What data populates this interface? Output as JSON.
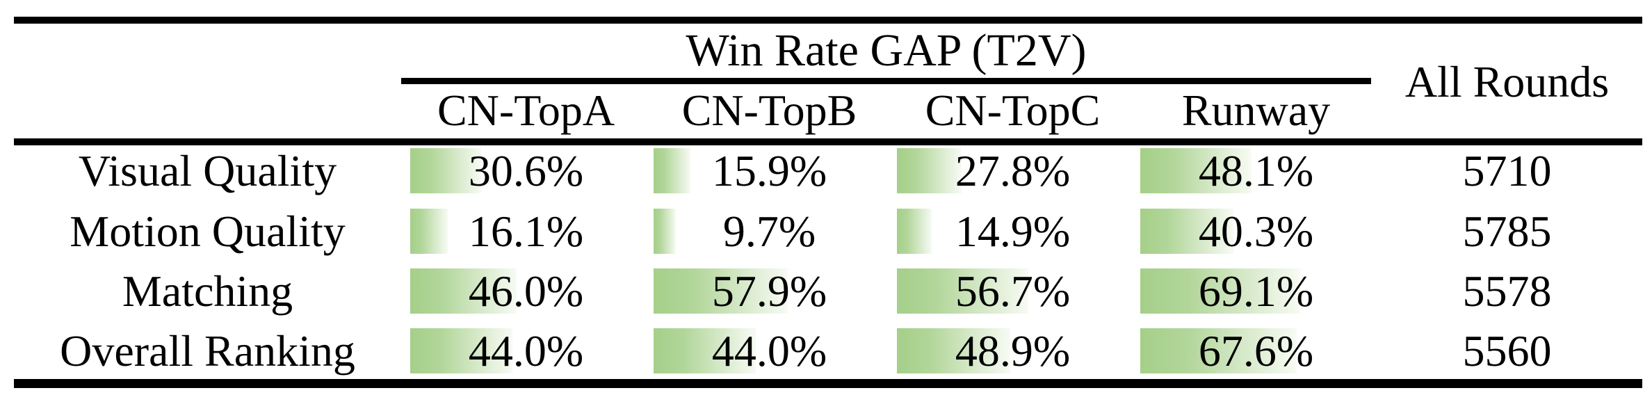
{
  "table": {
    "group_header": "Win Rate GAP (T2V)",
    "all_rounds_header": "All Rounds",
    "columns": [
      "CN-TopA",
      "CN-TopB",
      "CN-TopC",
      "Runway"
    ],
    "rows": [
      {
        "label": "Visual Quality",
        "cells": [
          {
            "display": "30.6%",
            "pct": 30.6
          },
          {
            "display": "15.9%",
            "pct": 15.9
          },
          {
            "display": "27.8%",
            "pct": 27.8
          },
          {
            "display": "48.1%",
            "pct": 48.1
          }
        ],
        "all_rounds": "5710"
      },
      {
        "label": "Motion Quality",
        "cells": [
          {
            "display": "16.1%",
            "pct": 16.1
          },
          {
            "display": "9.7%",
            "pct": 9.7
          },
          {
            "display": "14.9%",
            "pct": 14.9
          },
          {
            "display": "40.3%",
            "pct": 40.3
          }
        ],
        "all_rounds": "5785"
      },
      {
        "label": "Matching",
        "cells": [
          {
            "display": "46.0%",
            "pct": 46.0
          },
          {
            "display": "57.9%",
            "pct": 57.9
          },
          {
            "display": "56.7%",
            "pct": 56.7
          },
          {
            "display": "69.1%",
            "pct": 69.1
          }
        ],
        "all_rounds": "5578"
      },
      {
        "label": "Overall Ranking",
        "cells": [
          {
            "display": "44.0%",
            "pct": 44.0
          },
          {
            "display": "44.0%",
            "pct": 44.0
          },
          {
            "display": "48.9%",
            "pct": 48.9
          },
          {
            "display": "67.6%",
            "pct": 67.6
          }
        ],
        "all_rounds": "5560"
      }
    ],
    "colors": {
      "bar_green": "#a5cf89",
      "bar_fade": "#f7fbf4",
      "rule_black": "#000000"
    }
  },
  "chart_data": {
    "type": "table",
    "title": "Win Rate GAP (T2V)",
    "categories": [
      "Visual Quality",
      "Motion Quality",
      "Matching",
      "Overall Ranking"
    ],
    "series": [
      {
        "name": "CN-TopA",
        "values": [
          30.6,
          16.1,
          46.0,
          44.0
        ]
      },
      {
        "name": "CN-TopB",
        "values": [
          15.9,
          9.7,
          57.9,
          44.0
        ]
      },
      {
        "name": "CN-TopC",
        "values": [
          27.8,
          14.9,
          56.7,
          48.9
        ]
      },
      {
        "name": "Runway",
        "values": [
          48.1,
          40.3,
          69.1,
          67.6
        ]
      }
    ],
    "all_rounds": {
      "name": "All Rounds",
      "values": [
        5710,
        5785,
        5578,
        5560
      ]
    },
    "value_unit": "%",
    "bar_scale": "in-cell horizontal bars, 100% = full column width",
    "xlim": [
      0,
      100
    ]
  }
}
